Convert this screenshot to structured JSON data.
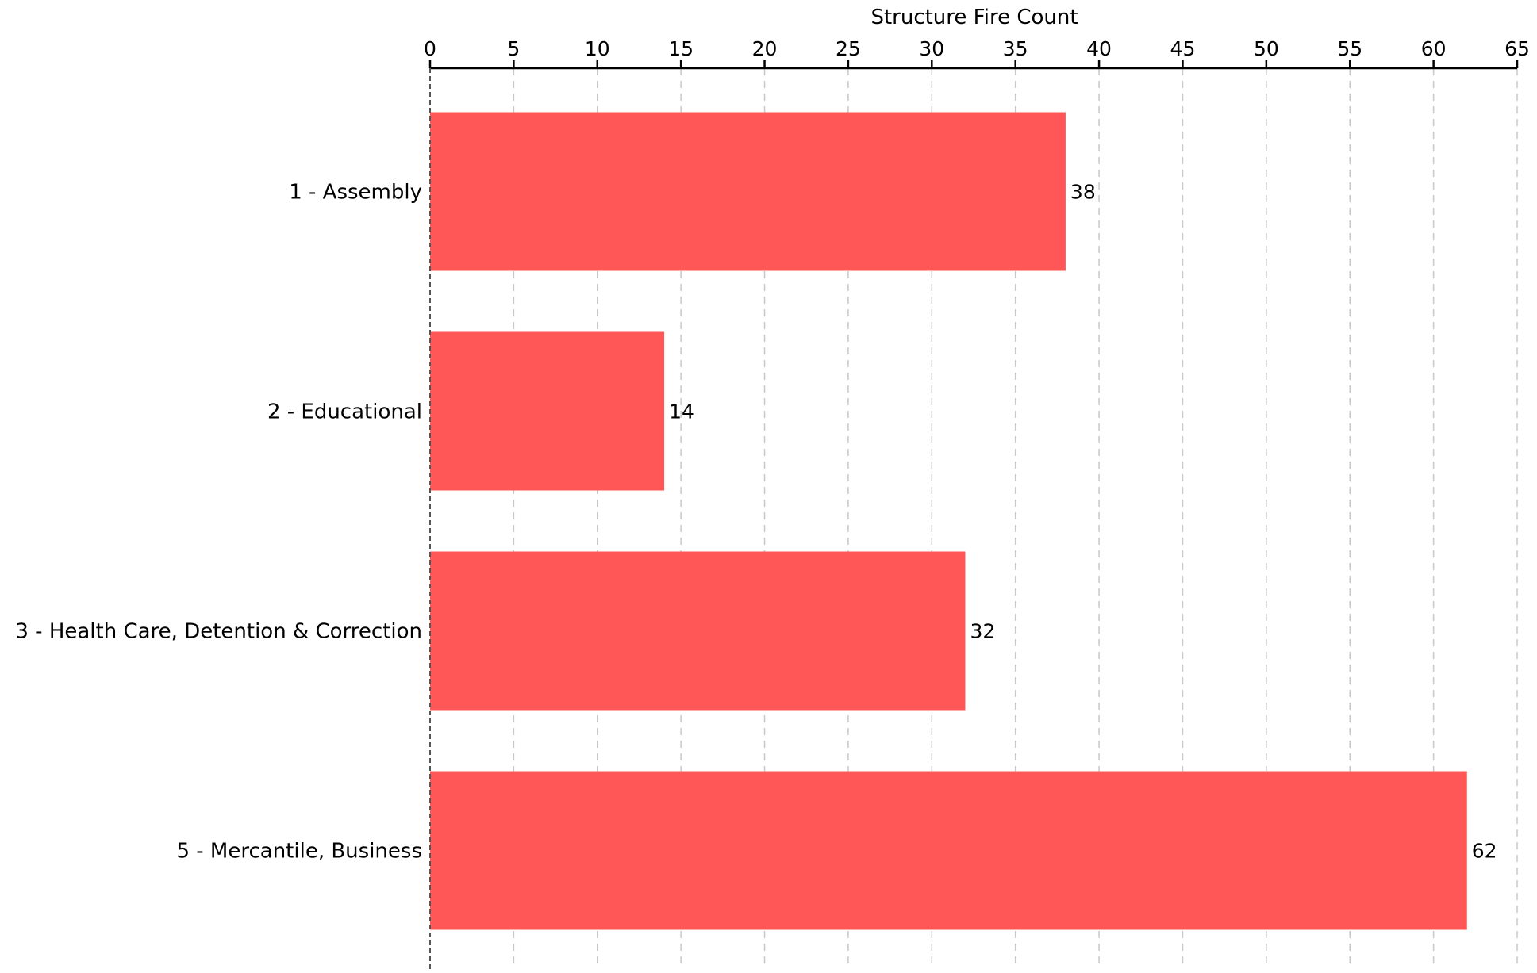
{
  "chart_data": {
    "type": "bar",
    "orientation": "horizontal",
    "xlabel": "Structure Fire Count",
    "x_axis_position": "top",
    "xlim": [
      0,
      65
    ],
    "x_ticks": [
      "0",
      "5",
      "10",
      "15",
      "20",
      "25",
      "30",
      "35",
      "40",
      "45",
      "50",
      "55",
      "60",
      "65"
    ],
    "categories": [
      "1 - Assembly",
      "2 - Educational",
      "3 - Health Care, Detention & Correction",
      "5 - Mercantile, Business"
    ],
    "values": [
      38,
      14,
      32,
      62
    ],
    "value_labels": [
      "38",
      "14",
      "32",
      "62"
    ],
    "bar_color": "#ff5757",
    "grid": "vertical dashed",
    "legend": "none"
  }
}
